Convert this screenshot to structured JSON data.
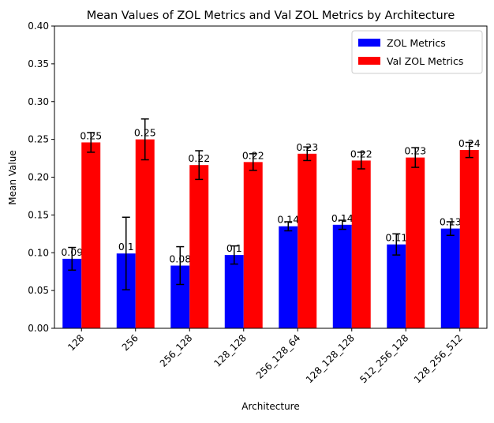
{
  "chart_data": {
    "type": "bar",
    "title": "Mean Values of ZOL Metrics and Val ZOL Metrics by Architecture",
    "xlabel": "Architecture",
    "ylabel": "Mean Value",
    "ylim": [
      0,
      0.4
    ],
    "yticks": [
      "0.00",
      "0.05",
      "0.10",
      "0.15",
      "0.20",
      "0.25",
      "0.30",
      "0.35",
      "0.40"
    ],
    "categories": [
      "128",
      "256",
      "256_128",
      "128_128",
      "256_128_64",
      "128_128_128",
      "512_256_128",
      "128_256_512"
    ],
    "legend_position": "top-right",
    "series": [
      {
        "name": "ZOL Metrics",
        "color": "#0000ff",
        "values": [
          0.092,
          0.099,
          0.083,
          0.097,
          0.135,
          0.137,
          0.111,
          0.132
        ],
        "errors": [
          0.015,
          0.048,
          0.025,
          0.012,
          0.006,
          0.006,
          0.014,
          0.009
        ],
        "labels": [
          "0.09",
          "0.1",
          "0.08",
          "0.1",
          "0.14",
          "0.14",
          "0.11",
          "0.13"
        ]
      },
      {
        "name": "Val ZOL Metrics",
        "color": "#ff0000",
        "values": [
          0.246,
          0.25,
          0.216,
          0.22,
          0.231,
          0.222,
          0.226,
          0.236
        ],
        "errors": [
          0.013,
          0.027,
          0.019,
          0.011,
          0.009,
          0.011,
          0.013,
          0.01
        ],
        "labels": [
          "0.25",
          "0.25",
          "0.22",
          "0.22",
          "0.23",
          "0.22",
          "0.23",
          "0.24"
        ]
      }
    ]
  }
}
